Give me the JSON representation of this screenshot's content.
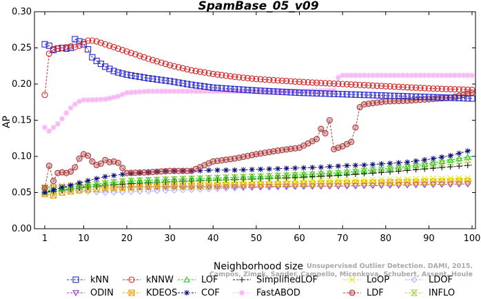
{
  "chart_data": {
    "type": "line",
    "title": "SpamBase_05_v09",
    "xlabel": "Neighborhood size",
    "ylabel": "AP",
    "xlim": [
      1,
      100
    ],
    "ylim": [
      0.0,
      0.3
    ],
    "xticks": [
      1,
      10,
      20,
      30,
      40,
      50,
      60,
      70,
      80,
      90,
      100
    ],
    "yticks": [
      "0.00",
      "0.05",
      "0.10",
      "0.15",
      "0.20",
      "0.25",
      "0.30"
    ],
    "grid": false,
    "legend_position": "bottom",
    "credit_lines": [
      "Campos, Zimek, Sander, Campello, Micenkova, Schubert, Assent, Houle",
      "Unsupervised Outlier Detection. DAMI, 2015."
    ],
    "series": [
      {
        "name": "kNN",
        "color": "#2323cc",
        "marker": "square",
        "points": [
          [
            1,
            0.255
          ],
          [
            2,
            0.253
          ],
          [
            3,
            0.247
          ],
          [
            4,
            0.249
          ],
          [
            5,
            0.25
          ],
          [
            6,
            0.249
          ],
          [
            7,
            0.25
          ],
          [
            8,
            0.262
          ],
          [
            9,
            0.259
          ],
          [
            10,
            0.255
          ],
          [
            11,
            0.248
          ],
          [
            12,
            0.237
          ],
          [
            13,
            0.232
          ],
          [
            14,
            0.228
          ],
          [
            15,
            0.224
          ],
          [
            16,
            0.221
          ],
          [
            17,
            0.218
          ],
          [
            18,
            0.216
          ],
          [
            20,
            0.213
          ],
          [
            25,
            0.208
          ],
          [
            30,
            0.204
          ],
          [
            35,
            0.199
          ],
          [
            40,
            0.195
          ],
          [
            45,
            0.193
          ],
          [
            50,
            0.191
          ],
          [
            60,
            0.188
          ],
          [
            70,
            0.186
          ],
          [
            80,
            0.184
          ],
          [
            90,
            0.182
          ],
          [
            100,
            0.18
          ]
        ]
      },
      {
        "name": "kNNW",
        "color": "#d42222",
        "marker": "circle",
        "points": [
          [
            1,
            0.185
          ],
          [
            2,
            0.242
          ],
          [
            3,
            0.248
          ],
          [
            4,
            0.249
          ],
          [
            5,
            0.25
          ],
          [
            6,
            0.251
          ],
          [
            7,
            0.252
          ],
          [
            8,
            0.251
          ],
          [
            9,
            0.253
          ],
          [
            10,
            0.258
          ],
          [
            11,
            0.26
          ],
          [
            12,
            0.26
          ],
          [
            13,
            0.259
          ],
          [
            14,
            0.257
          ],
          [
            15,
            0.255
          ],
          [
            16,
            0.253
          ],
          [
            18,
            0.249
          ],
          [
            20,
            0.245
          ],
          [
            25,
            0.235
          ],
          [
            30,
            0.226
          ],
          [
            35,
            0.219
          ],
          [
            40,
            0.214
          ],
          [
            45,
            0.21
          ],
          [
            50,
            0.207
          ],
          [
            60,
            0.203
          ],
          [
            70,
            0.2
          ],
          [
            80,
            0.197
          ],
          [
            90,
            0.194
          ],
          [
            100,
            0.192
          ]
        ]
      },
      {
        "name": "LOF",
        "color": "#22cc22",
        "marker": "triangle",
        "points": [
          [
            1,
            0.052
          ],
          [
            5,
            0.056
          ],
          [
            10,
            0.06
          ],
          [
            15,
            0.063
          ],
          [
            20,
            0.066
          ],
          [
            30,
            0.068
          ],
          [
            40,
            0.07
          ],
          [
            50,
            0.072
          ],
          [
            60,
            0.075
          ],
          [
            70,
            0.078
          ],
          [
            80,
            0.083
          ],
          [
            90,
            0.09
          ],
          [
            100,
            0.1
          ]
        ]
      },
      {
        "name": "SimplifiedLOF",
        "color": "#111111",
        "marker": "plus",
        "points": [
          [
            1,
            0.05
          ],
          [
            5,
            0.053
          ],
          [
            10,
            0.057
          ],
          [
            15,
            0.06
          ],
          [
            20,
            0.062
          ],
          [
            30,
            0.065
          ],
          [
            40,
            0.067
          ],
          [
            50,
            0.069
          ],
          [
            60,
            0.071
          ],
          [
            70,
            0.074
          ],
          [
            80,
            0.078
          ],
          [
            90,
            0.083
          ],
          [
            100,
            0.088
          ]
        ]
      },
      {
        "name": "LoOP",
        "color": "#e6e600",
        "marker": "x",
        "points": [
          [
            1,
            0.058
          ],
          [
            5,
            0.06
          ],
          [
            10,
            0.061
          ],
          [
            20,
            0.062
          ],
          [
            30,
            0.063
          ],
          [
            40,
            0.064
          ],
          [
            50,
            0.065
          ],
          [
            60,
            0.066
          ],
          [
            70,
            0.067
          ],
          [
            80,
            0.068
          ],
          [
            90,
            0.069
          ],
          [
            100,
            0.07
          ]
        ]
      },
      {
        "name": "LDOF",
        "color": "#b0b0ff",
        "marker": "diamond",
        "points": [
          [
            1,
            0.055
          ],
          [
            5,
            0.054
          ],
          [
            10,
            0.052
          ],
          [
            15,
            0.05
          ],
          [
            20,
            0.051
          ],
          [
            30,
            0.053
          ],
          [
            40,
            0.055
          ],
          [
            50,
            0.057
          ],
          [
            60,
            0.058
          ],
          [
            70,
            0.059
          ],
          [
            80,
            0.06
          ],
          [
            90,
            0.061
          ],
          [
            100,
            0.062
          ]
        ]
      },
      {
        "name": "ODIN",
        "color": "#9933cc",
        "marker": "triangle-down",
        "points": [
          [
            1,
            0.057
          ],
          [
            5,
            0.058
          ],
          [
            10,
            0.058
          ],
          [
            20,
            0.058
          ],
          [
            30,
            0.058
          ],
          [
            40,
            0.058
          ],
          [
            50,
            0.058
          ],
          [
            60,
            0.059
          ],
          [
            70,
            0.059
          ],
          [
            80,
            0.06
          ],
          [
            90,
            0.061
          ],
          [
            100,
            0.062
          ]
        ]
      },
      {
        "name": "KDEOS",
        "color": "#e8a000",
        "marker": "square-x",
        "points": [
          [
            1,
            0.048
          ],
          [
            3,
            0.046
          ],
          [
            5,
            0.05
          ],
          [
            10,
            0.054
          ],
          [
            20,
            0.057
          ],
          [
            30,
            0.059
          ],
          [
            40,
            0.06
          ],
          [
            50,
            0.061
          ],
          [
            60,
            0.062
          ],
          [
            70,
            0.063
          ],
          [
            80,
            0.064
          ],
          [
            90,
            0.065
          ],
          [
            100,
            0.066
          ]
        ]
      },
      {
        "name": "COF",
        "color": "#0a0a7a",
        "marker": "asterisk",
        "points": [
          [
            1,
            0.05
          ],
          [
            5,
            0.057
          ],
          [
            10,
            0.065
          ],
          [
            15,
            0.072
          ],
          [
            20,
            0.076
          ],
          [
            25,
            0.078
          ],
          [
            30,
            0.08
          ],
          [
            35,
            0.08
          ],
          [
            40,
            0.081
          ],
          [
            45,
            0.081
          ],
          [
            50,
            0.082
          ],
          [
            55,
            0.083
          ],
          [
            60,
            0.084
          ],
          [
            65,
            0.085
          ],
          [
            70,
            0.087
          ],
          [
            75,
            0.088
          ],
          [
            80,
            0.09
          ],
          [
            85,
            0.092
          ],
          [
            90,
            0.096
          ],
          [
            95,
            0.101
          ],
          [
            100,
            0.109
          ]
        ]
      },
      {
        "name": "FastABOD",
        "color": "#f5b8f5",
        "marker": "star",
        "points": [
          [
            1,
            0.14
          ],
          [
            2,
            0.135
          ],
          [
            3,
            0.14
          ],
          [
            4,
            0.145
          ],
          [
            5,
            0.152
          ],
          [
            6,
            0.16
          ],
          [
            7,
            0.167
          ],
          [
            8,
            0.172
          ],
          [
            9,
            0.176
          ],
          [
            10,
            0.178
          ],
          [
            12,
            0.178
          ],
          [
            15,
            0.179
          ],
          [
            18,
            0.183
          ],
          [
            20,
            0.188
          ],
          [
            25,
            0.19
          ],
          [
            30,
            0.19
          ],
          [
            40,
            0.19
          ],
          [
            50,
            0.19
          ],
          [
            60,
            0.19
          ],
          [
            68,
            0.191
          ],
          [
            69,
            0.209
          ],
          [
            70,
            0.212
          ],
          [
            80,
            0.212
          ],
          [
            90,
            0.212
          ],
          [
            100,
            0.212
          ]
        ]
      },
      {
        "name": "LDF",
        "color": "#a83a3a",
        "marker": "circle-dot",
        "points": [
          [
            1,
            0.056
          ],
          [
            2,
            0.087
          ],
          [
            3,
            0.066
          ],
          [
            4,
            0.077
          ],
          [
            5,
            0.078
          ],
          [
            6,
            0.077
          ],
          [
            7,
            0.079
          ],
          [
            8,
            0.085
          ],
          [
            9,
            0.097
          ],
          [
            10,
            0.103
          ],
          [
            11,
            0.101
          ],
          [
            12,
            0.093
          ],
          [
            13,
            0.088
          ],
          [
            14,
            0.09
          ],
          [
            15,
            0.095
          ],
          [
            16,
            0.092
          ],
          [
            17,
            0.093
          ],
          [
            18,
            0.091
          ],
          [
            20,
            0.077
          ],
          [
            25,
            0.078
          ],
          [
            30,
            0.08
          ],
          [
            35,
            0.08
          ],
          [
            40,
            0.093
          ],
          [
            45,
            0.097
          ],
          [
            50,
            0.103
          ],
          [
            55,
            0.108
          ],
          [
            60,
            0.112
          ],
          [
            62,
            0.118
          ],
          [
            64,
            0.124
          ],
          [
            65,
            0.138
          ],
          [
            66,
            0.132
          ],
          [
            67,
            0.15
          ],
          [
            68,
            0.11
          ],
          [
            70,
            0.114
          ],
          [
            72,
            0.12
          ],
          [
            73,
            0.14
          ],
          [
            74,
            0.168
          ],
          [
            75,
            0.172
          ],
          [
            80,
            0.176
          ],
          [
            85,
            0.177
          ],
          [
            90,
            0.179
          ],
          [
            95,
            0.181
          ],
          [
            100,
            0.188
          ]
        ]
      },
      {
        "name": "INFLO",
        "color": "#a0cc40",
        "marker": "hourglass",
        "points": [
          [
            1,
            0.051
          ],
          [
            5,
            0.055
          ],
          [
            10,
            0.059
          ],
          [
            15,
            0.063
          ],
          [
            20,
            0.066
          ],
          [
            30,
            0.068
          ],
          [
            40,
            0.07
          ],
          [
            50,
            0.072
          ],
          [
            60,
            0.074
          ],
          [
            70,
            0.077
          ],
          [
            80,
            0.082
          ],
          [
            90,
            0.088
          ],
          [
            100,
            0.096
          ]
        ]
      }
    ]
  }
}
